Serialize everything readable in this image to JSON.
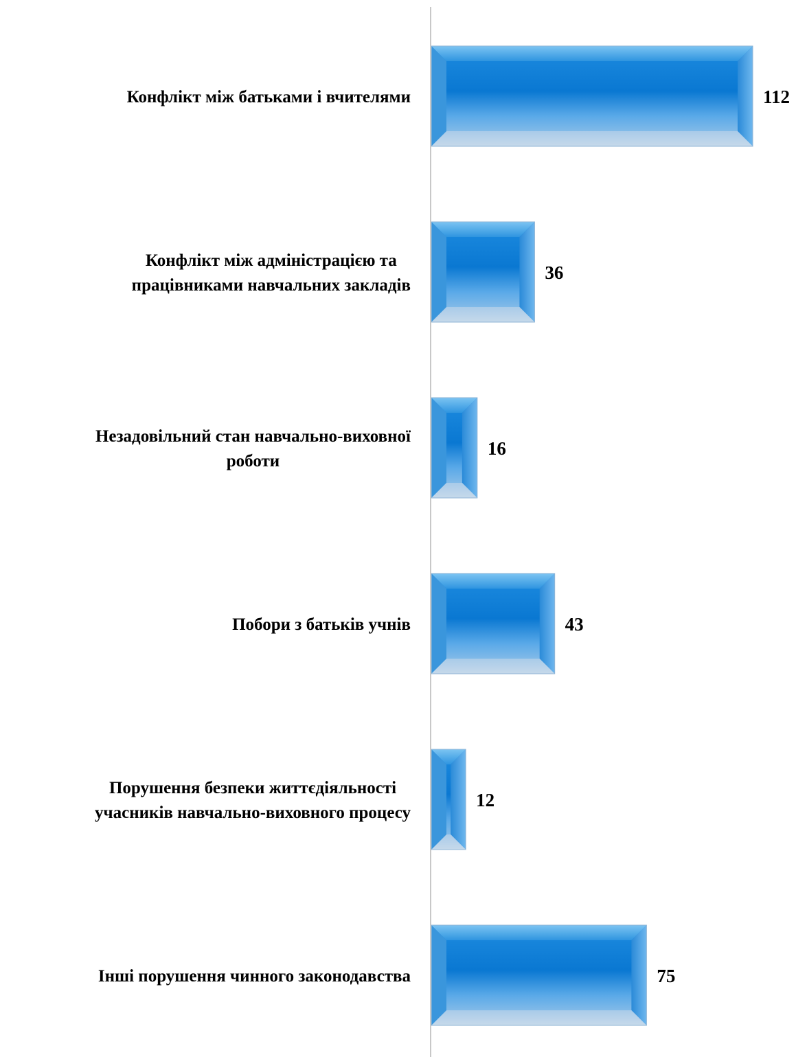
{
  "chart_data": {
    "type": "bar",
    "orientation": "horizontal",
    "categories": [
      [
        "Конфлікт між батьками і вчителями"
      ],
      [
        "Конфлікт між адміністрацією та",
        "працівниками навчальних закладів"
      ],
      [
        "Незадовільний стан навчально-виховної",
        "роботи"
      ],
      [
        "Побори з батьків учнів"
      ],
      [
        "Порушення безпеки життєдіяльності",
        "учасників навчально-виховного процесу"
      ],
      [
        "Інші порушення чинного законодавства"
      ]
    ],
    "values": [
      112,
      36,
      16,
      43,
      12,
      75
    ],
    "data_labels": [
      "112",
      "36",
      "16",
      "43",
      "12",
      "75"
    ],
    "title": "",
    "xlabel": "",
    "ylabel": "",
    "grid": false,
    "legend": "none",
    "colors": {
      "bar_top": "#7cc4f2",
      "bar_mid": "#0a78d2",
      "bar_bottom": "#c6d9ea",
      "axis": "#c8c8c8"
    }
  }
}
